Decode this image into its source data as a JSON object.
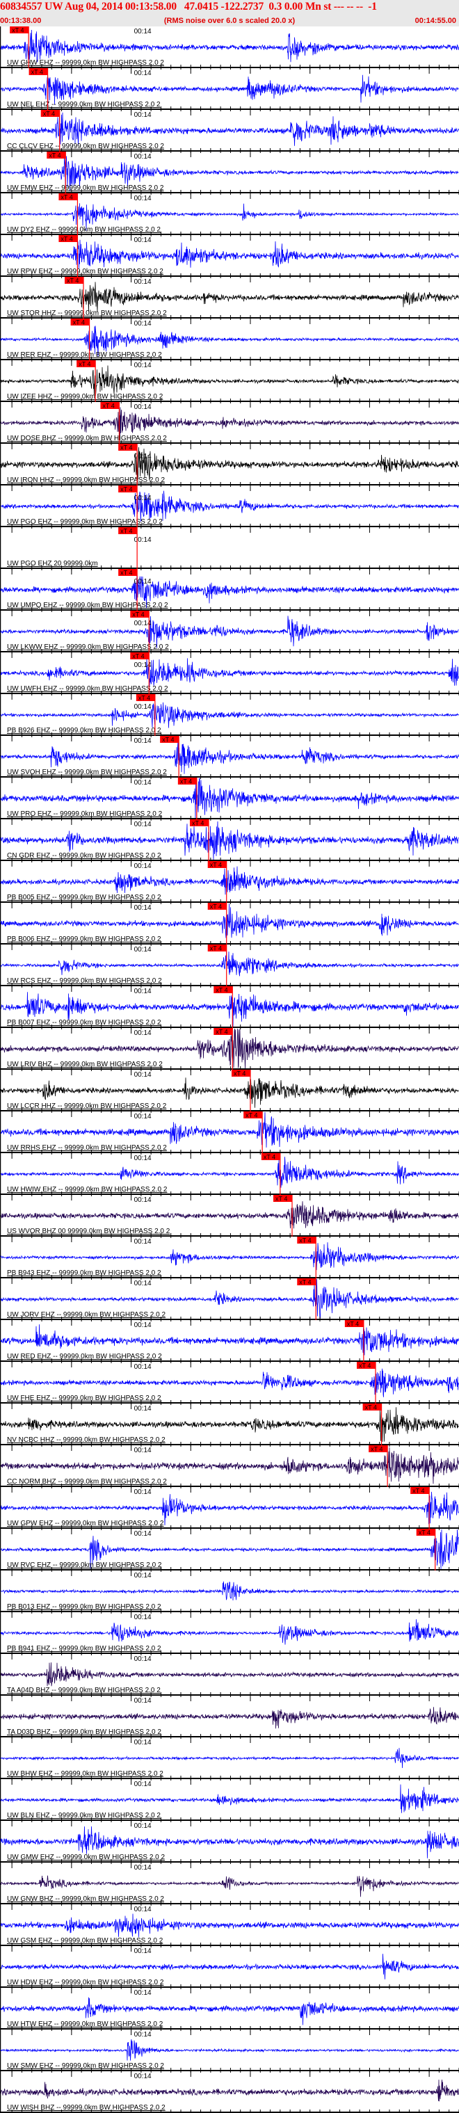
{
  "header": {
    "title": "60834557 UW Aug 04, 2014 00:13:58.00   47.0415 -122.2737  0.3 0.00 Mn st --- -- --  -1",
    "start_time": "00:13:38.00",
    "note": "(RMS noise over 6.0 s scaled 20.0 x)",
    "end_time": "00:14:55.00"
  },
  "chart_data": {
    "type": "line",
    "x_range": [
      "00:13:38.00",
      "00:14:55.00"
    ],
    "tick_label": "00:14",
    "tick_label_time": "00:14:00.0",
    "pick_label": "xT 4",
    "colors": {
      "pick": "#ff0000",
      "EHZ": "#0000ff",
      "HHZ": "#000000",
      "BHZ": "#200050"
    },
    "traces": [
      {
        "label": "UW GHW EHZ -- 99999.0km BW HIGHPASS 2.0 2",
        "color": "#0000ff",
        "pick": "00:13:42.8"
      },
      {
        "label": "UW NEL EHZ -- 99999.0km BW HIGHPASS 2.0 2",
        "color": "#0000ff",
        "pick": "00:13:46.0"
      },
      {
        "label": "CC CLCV EHZ -- 99999.0km BW HIGHPASS 2.0 2",
        "color": "#0000ff",
        "pick": "00:13:48.0"
      },
      {
        "label": "UW FMW EHZ -- 99999.0km BW HIGHPASS 2.0 2",
        "color": "#0000ff",
        "pick": "00:13:49.0"
      },
      {
        "label": "UW DY2 EHZ -- 99999.0km BW HIGHPASS 2.0 2",
        "color": "#0000ff",
        "pick": "00:13:51.0"
      },
      {
        "label": "UW RPW EHZ -- 99999.0km BW HIGHPASS 2.0 2",
        "color": "#0000ff",
        "pick": "00:13:51.0"
      },
      {
        "label": "UW STOR HHZ -- 99999.0km BW HIGHPASS 2.0 2",
        "color": "#000000",
        "pick": "00:13:52.0"
      },
      {
        "label": "UW RER EHZ -- 99999.0km BW HIGHPASS 2.0 2",
        "color": "#0000ff",
        "pick": "00:13:53.0"
      },
      {
        "label": "UW IZEE HHZ -- 99999.0km BW HIGHPASS 2.0 2",
        "color": "#000000",
        "pick": "00:13:54.0"
      },
      {
        "label": "UW DOSE BHZ -- 99999.0km BW HIGHPASS 2.0 2",
        "color": "#200050",
        "pick": "00:13:58.0"
      },
      {
        "label": "UW IRON HHZ -- 99999.0km BW HIGHPASS 2.0 2",
        "color": "#000000",
        "pick": "00:14:01.0"
      },
      {
        "label": "UW PGO EHZ -- 99999.0km BW HIGHPASS 2.0 2",
        "color": "#0000ff",
        "pick": "00:14:01.0"
      },
      {
        "label": "UW PGO EHZ 20 99999.0km",
        "color": "#0000ff",
        "pick": "00:14:01.0",
        "has_waveform": false
      },
      {
        "label": "UW UMPQ EHZ -- 99999.0km BW HIGHPASS 2.0 2",
        "color": "#0000ff",
        "pick": "00:14:01.0"
      },
      {
        "label": "UW LKWW EHZ -- 99999.0km BW HIGHPASS 2.0 2",
        "color": "#0000ff",
        "pick": "00:14:03.0"
      },
      {
        "label": "UW UWFH EHZ -- 99999.0km BW HIGHPASS 2.0 2",
        "color": "#0000ff",
        "pick": "00:14:03.0"
      },
      {
        "label": "PB B926 EHZ -- 99999.0km BW HIGHPASS 2.0 2",
        "color": "#0000ff",
        "pick": "00:14:04.0"
      },
      {
        "label": "UW SVOH EHZ -- 99999.0km BW HIGHPASS 2.0 2",
        "color": "#0000ff",
        "pick": "00:14:08.0"
      },
      {
        "label": "UW PRO EHZ -- 99999.0km BW HIGHPASS 2.0 2",
        "color": "#0000ff",
        "pick": "00:14:11.0"
      },
      {
        "label": "CN GDR EHZ -- 99999.0km BW HIGHPASS 2.0 2",
        "color": "#0000ff",
        "pick": "00:14:13.0"
      },
      {
        "label": "PB B005 EHZ -- 99999.0km BW HIGHPASS 2.0 2",
        "color": "#0000ff",
        "pick": "00:14:16.0"
      },
      {
        "label": "PB B006 EHZ -- 99999.0km BW HIGHPASS 2.0 2",
        "color": "#0000ff",
        "pick": "00:14:16.0"
      },
      {
        "label": "UW RCS EHZ -- 99999.0km BW HIGHPASS 2.0 2",
        "color": "#0000ff",
        "pick": "00:14:16.0"
      },
      {
        "label": "PB B007 EHZ -- 99999.0km BW HIGHPASS 2.0 2",
        "color": "#0000ff",
        "pick": "00:14:17.0"
      },
      {
        "label": "UW LRIV BHZ -- 99999.0km BW HIGHPASS 2.0 2",
        "color": "#200050",
        "pick": "00:14:17.0"
      },
      {
        "label": "UW LCCR HHZ -- 99999.0km BW HIGHPASS 2.0 2",
        "color": "#000000",
        "pick": "00:14:20.0"
      },
      {
        "label": "UW RRHS EHZ -- 99999.0km BW HIGHPASS 2.0 2",
        "color": "#0000ff",
        "pick": "00:14:22.0"
      },
      {
        "label": "UW HWIW EHZ -- 99999.0km BW HIGHPASS 2.0 2",
        "color": "#0000ff",
        "pick": "00:14:25.0"
      },
      {
        "label": "US WVOR BHZ 00 99999.0km BW HIGHPASS 2.0 2",
        "color": "#200050",
        "pick": "00:14:27.0"
      },
      {
        "label": "PB B943 EHZ -- 99999.0km BW HIGHPASS 2.0 2",
        "color": "#0000ff",
        "pick": "00:14:31.0"
      },
      {
        "label": "UW JORV EHZ -- 99999.0km BW HIGHPASS 2.0 2",
        "color": "#0000ff",
        "pick": "00:14:31.0"
      },
      {
        "label": "UW RED EHZ -- 99999.0km BW HIGHPASS 2.0 2",
        "color": "#0000ff",
        "pick": "00:14:39.0"
      },
      {
        "label": "UW FHE EHZ -- 99999.0km BW HIGHPASS 2.0 2",
        "color": "#0000ff",
        "pick": "00:14:41.0"
      },
      {
        "label": "NV NCBC HHZ -- 99999.0km BW HIGHPASS 2.0 2",
        "color": "#000000",
        "pick": "00:14:42.0"
      },
      {
        "label": "CC NORM BHZ -- 99999.0km BW HIGHPASS 2.0 2",
        "color": "#200050",
        "pick": "00:14:43.0"
      },
      {
        "label": "UW GPW EHZ -- 99999.0km BW HIGHPASS 2.0 2",
        "color": "#0000ff",
        "pick": "00:14:50.0"
      },
      {
        "label": "UW RVC EHZ -- 99999.0km BW HIGHPASS 2.0 2",
        "color": "#0000ff",
        "pick": "00:14:51.0"
      },
      {
        "label": "PB B013 EHZ -- 99999.0km BW HIGHPASS 2.0 2",
        "color": "#0000ff"
      },
      {
        "label": "PB B941 EHZ -- 99999.0km BW HIGHPASS 2.0 2",
        "color": "#0000ff"
      },
      {
        "label": "TA A04D BHZ -- 99999.0km BW HIGHPASS 2.0 2",
        "color": "#200050"
      },
      {
        "label": "TA D03D BHZ -- 99999.0km BW HIGHPASS 2.0 2",
        "color": "#200050"
      },
      {
        "label": "UW BHW EHZ -- 99999.0km BW HIGHPASS 2.0 2",
        "color": "#0000ff"
      },
      {
        "label": "UW BLN EHZ -- 99999.0km BW HIGHPASS 2.0 2",
        "color": "#0000ff"
      },
      {
        "label": "UW GMW EHZ -- 99999.0km BW HIGHPASS 2.0 2",
        "color": "#0000ff"
      },
      {
        "label": "UW GNW BHZ -- 99999.0km BW HIGHPASS 2.0 2",
        "color": "#200050"
      },
      {
        "label": "UW GSM EHZ -- 99999.0km BW HIGHPASS 2.0 2",
        "color": "#0000ff"
      },
      {
        "label": "UW HDW EHZ -- 99999.0km BW HIGHPASS 2.0 2",
        "color": "#0000ff"
      },
      {
        "label": "UW HTW EHZ -- 99999.0km BW HIGHPASS 2.0 2",
        "color": "#0000ff"
      },
      {
        "label": "UW SMW EHZ -- 99999.0km BW HIGHPASS 2.0 2",
        "color": "#0000ff"
      },
      {
        "label": "UW WISH BHZ -- 99999.0km BW HIGHPASS 2.0 2",
        "color": "#200050"
      }
    ]
  }
}
